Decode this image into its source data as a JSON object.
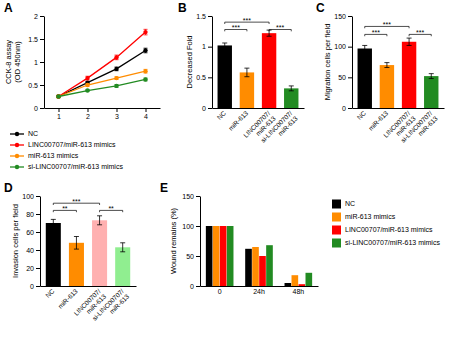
{
  "chart_data": [
    {
      "type": "line",
      "title": "A",
      "ylabel": "CCK-8 assay\n(OD 450nm)",
      "x": [
        1,
        2,
        3,
        4
      ],
      "xlim": [
        0.5,
        4.5
      ],
      "xticks": [
        1,
        2,
        3,
        4
      ],
      "ylim": [
        0.0,
        2.0
      ],
      "yticks": [
        0.0,
        0.5,
        1.0,
        1.5,
        2.0
      ],
      "marker": "circle",
      "legend": "bottom",
      "series": [
        {
          "name": "NC",
          "color": "#000000",
          "values": [
            0.25,
            0.55,
            0.85,
            1.25
          ],
          "errors": [
            0.02,
            0.03,
            0.04,
            0.05
          ]
        },
        {
          "name": "LINC00707/miR-613 mimics",
          "color": "#FF0000",
          "values": [
            0.25,
            0.65,
            1.1,
            1.65
          ],
          "errors": [
            0.02,
            0.04,
            0.05,
            0.06
          ]
        },
        {
          "name": "miR-613 mimics",
          "color": "#FF8C00",
          "values": [
            0.25,
            0.5,
            0.65,
            0.8
          ],
          "errors": [
            0.02,
            0.03,
            0.03,
            0.04
          ]
        },
        {
          "name": "si-LINC00707/miR-613 mimics",
          "color": "#228B22",
          "values": [
            0.25,
            0.38,
            0.48,
            0.62
          ],
          "errors": [
            0.02,
            0.02,
            0.03,
            0.03
          ]
        }
      ]
    },
    {
      "type": "bar",
      "title": "B",
      "ylabel": "Decreased Fold",
      "categories": [
        "NC",
        "miR-613",
        "LINC00707/\nmiR-613",
        "si-LINC00707/\nmiR-613"
      ],
      "values": [
        1.02,
        0.58,
        1.22,
        0.32
      ],
      "errors": [
        0.04,
        0.07,
        0.05,
        0.04
      ],
      "colors": [
        "#000000",
        "#FF8C00",
        "#FF0000",
        "#228B22"
      ],
      "ylim": [
        0.0,
        1.5
      ],
      "yticks": [
        0.0,
        0.5,
        1.0,
        1.5
      ],
      "annotations": [
        {
          "x1": 0,
          "x2": 1,
          "y": 1.28,
          "label": "***"
        },
        {
          "x1": 0,
          "x2": 2,
          "y": 1.4,
          "label": "***"
        },
        {
          "x1": 2,
          "x2": 3,
          "y": 1.28,
          "label": "***"
        }
      ]
    },
    {
      "type": "bar",
      "title": "C",
      "ylabel": "Migration cells per field",
      "categories": [
        "NC",
        "miR-613",
        "LINC00707/\nmiR-613",
        "si-LINC00707/\nmiR-613"
      ],
      "values": [
        97,
        70,
        108,
        52
      ],
      "errors": [
        5,
        4,
        6,
        4
      ],
      "colors": [
        "#000000",
        "#FF8C00",
        "#FF0000",
        "#228B22"
      ],
      "ylim": [
        0,
        150
      ],
      "yticks": [
        0,
        50,
        100,
        150
      ],
      "annotations": [
        {
          "x1": 0,
          "x2": 1,
          "y": 120,
          "label": "***"
        },
        {
          "x1": 0,
          "x2": 2,
          "y": 133,
          "label": "***"
        },
        {
          "x1": 2,
          "x2": 3,
          "y": 120,
          "label": "***"
        }
      ]
    },
    {
      "type": "bar",
      "title": "D",
      "ylabel": "Invasion cells per field",
      "categories": [
        "NC",
        "miR-613",
        "LINC00707/\nmiR-613",
        "si-LINC00707/\nmiR-613"
      ],
      "values": [
        70,
        48,
        73,
        43
      ],
      "errors": [
        4,
        7,
        5,
        5
      ],
      "colors": [
        "#000000",
        "#FF8C00",
        "#FFB0B0",
        "#90EE90"
      ],
      "ylim": [
        0,
        100
      ],
      "yticks": [
        0,
        20,
        40,
        60,
        80,
        100
      ],
      "annotations": [
        {
          "x1": 0,
          "x2": 1,
          "y": 84,
          "label": "**"
        },
        {
          "x1": 0,
          "x2": 2,
          "y": 92,
          "label": "***"
        },
        {
          "x1": 2,
          "x2": 3,
          "y": 84,
          "label": "**"
        }
      ]
    },
    {
      "type": "bar",
      "title": "E",
      "ylabel": "Wound remains (%)",
      "categories": [
        "0",
        "24h",
        "48h"
      ],
      "series": [
        {
          "name": "NC",
          "color": "#000000",
          "values": [
            100,
            62,
            5
          ]
        },
        {
          "name": "miR-613 mimics",
          "color": "#FF8C00",
          "values": [
            100,
            65,
            18
          ]
        },
        {
          "name": "LINC00707/miR-613 mimics",
          "color": "#FF0000",
          "values": [
            100,
            50,
            3
          ]
        },
        {
          "name": "si-LINC00707/miR-613 mimics",
          "color": "#228B22",
          "values": [
            100,
            68,
            22
          ]
        }
      ],
      "ylim": [
        0,
        150
      ],
      "yticks": [
        0,
        50,
        100,
        150
      ],
      "legend": "right"
    }
  ]
}
